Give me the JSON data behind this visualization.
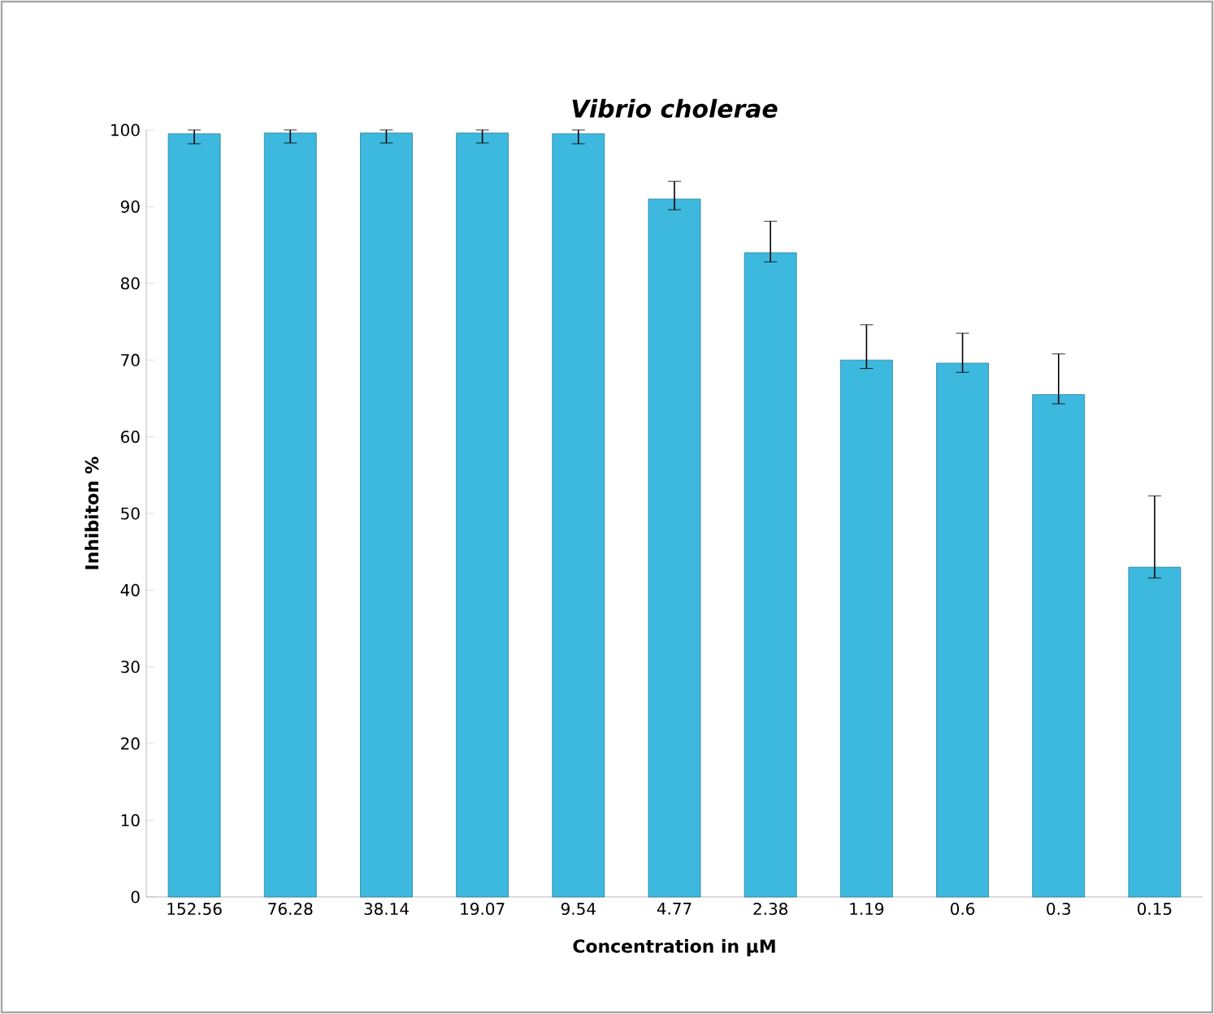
{
  "chart_data": {
    "type": "bar",
    "title": "*Vibrio cholerae*",
    "xlabel": "Concentration in µM",
    "ylabel": "Inhibiton %",
    "categories": [
      "152.56",
      "76.28",
      "38.14",
      "19.07",
      "9.54",
      "4.77",
      "2.38",
      "1.19",
      "0.6",
      "0.3",
      "0.15"
    ],
    "values": [
      99.5,
      99.6,
      99.6,
      99.6,
      99.5,
      91,
      84,
      70,
      69.6,
      65.5,
      43
    ],
    "errors": [
      [
        98.2,
        100
      ],
      [
        98.3,
        100
      ],
      [
        98.3,
        100
      ],
      [
        98.3,
        100
      ],
      [
        98.2,
        100
      ],
      [
        89.6,
        93.3
      ],
      [
        82.8,
        88.1
      ],
      [
        68.9,
        74.6
      ],
      [
        68.4,
        73.5
      ],
      [
        64.3,
        70.8
      ],
      [
        41.6,
        52.3
      ]
    ],
    "color": "#3db8de",
    "ylim": [
      0,
      100
    ],
    "yticks": [
      0,
      10,
      20,
      30,
      40,
      50,
      60,
      70,
      80,
      90,
      100
    ],
    "grid": false
  }
}
